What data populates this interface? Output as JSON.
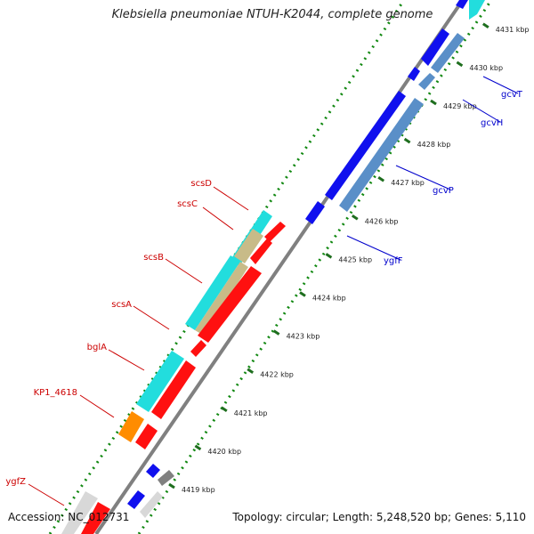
{
  "title": "Klebsiella pneumoniae NTUH-K2044, complete genome",
  "footer": {
    "accession": "Accession: NC_012731",
    "summary": "Topology: circular; Length: 5,248,520 bp; Genes: 5,110"
  },
  "scale_ticks": [
    "4419 kbp",
    "4420 kbp",
    "4421 kbp",
    "4422 kbp",
    "4423 kbp",
    "4424 kbp",
    "4425 kbp",
    "4426 kbp",
    "4427 kbp",
    "4428 kbp",
    "4429 kbp",
    "4430 kbp",
    "4431 kbp"
  ],
  "gene_labels": {
    "forward": [
      "gcvT",
      "gcvH",
      "gcvP",
      "ygfF"
    ],
    "reverse": [
      "scsD",
      "scsC",
      "scsB",
      "scsA",
      "bglA",
      "KP1_4618",
      "ygfZ"
    ]
  },
  "colors": {
    "forward_label": "#0000cc",
    "reverse_label": "#cc0000",
    "forward_gene": "#1010ee",
    "forward_gene_alt": "#5a8fc8",
    "reverse_gene": "#ff1010",
    "cyan_gene": "#22dddd",
    "tan_gene": "#c8bb88",
    "orange_gene": "#ff8c00",
    "backbone": "#808080",
    "dots": "#118811",
    "tick_marks": "#1e6e1e"
  }
}
